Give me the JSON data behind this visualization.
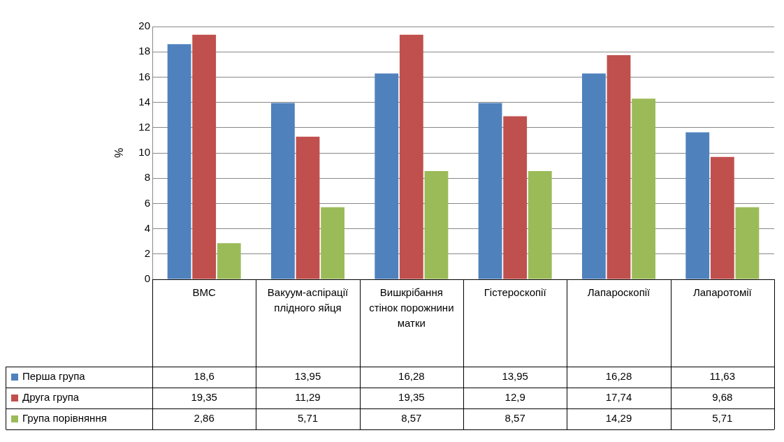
{
  "chart_data": {
    "type": "bar",
    "ylabel": "%",
    "categories": [
      "ВМС",
      "Вакуум-аспірації плідного яйця",
      "Вишкрібання стінок порожнини матки",
      "Гістероскопії",
      "Лапароскопії",
      "Лапаротомії"
    ],
    "series": [
      {
        "name": "Перша група",
        "color": "#4f81bd",
        "values": [
          18.6,
          13.95,
          16.28,
          13.95,
          16.28,
          11.63
        ],
        "value_labels": [
          "18,6",
          "13,95",
          "16,28",
          "13,95",
          "16,28",
          "11,63"
        ]
      },
      {
        "name": "Друга група",
        "color": "#c0504d",
        "values": [
          19.35,
          11.29,
          19.35,
          12.9,
          17.74,
          9.68
        ],
        "value_labels": [
          "19,35",
          "11,29",
          "19,35",
          "12,9",
          "17,74",
          "9,68"
        ]
      },
      {
        "name": "Група порівняння",
        "color": "#9bbb59",
        "values": [
          2.86,
          5.71,
          8.57,
          8.57,
          14.29,
          5.71
        ],
        "value_labels": [
          "2,86",
          "5,71",
          "8,57",
          "8,57",
          "14,29",
          "5,71"
        ]
      }
    ],
    "ylim": [
      0,
      20
    ],
    "yticks": [
      0,
      2,
      4,
      6,
      8,
      10,
      12,
      14,
      16,
      18,
      20
    ],
    "grid": "y",
    "legend": "bottom"
  }
}
